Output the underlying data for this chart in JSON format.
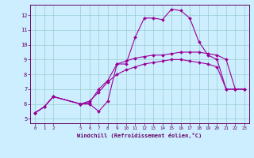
{
  "xlabel": "Windchill (Refroidissement éolien,°C)",
  "bg_color": "#cceeff",
  "line_color": "#990099",
  "grid_color": "#99cccc",
  "axis_color": "#660066",
  "tick_color": "#660066",
  "xlim_min": -0.5,
  "xlim_max": 23.5,
  "ylim_min": 4.7,
  "ylim_max": 12.7,
  "yticks": [
    5,
    6,
    7,
    8,
    9,
    10,
    11,
    12
  ],
  "xticks": [
    0,
    1,
    2,
    5,
    6,
    7,
    8,
    9,
    10,
    11,
    12,
    13,
    14,
    15,
    16,
    17,
    18,
    19,
    20,
    21,
    22,
    23
  ],
  "line1_x": [
    0,
    1,
    2,
    5,
    6,
    7,
    8,
    9,
    10,
    11,
    12,
    13,
    14,
    15,
    16,
    17,
    18,
    19,
    20,
    21,
    22,
    23
  ],
  "line1_y": [
    5.4,
    5.8,
    6.5,
    6.0,
    6.0,
    5.5,
    6.2,
    8.7,
    8.7,
    10.5,
    11.8,
    11.8,
    11.7,
    12.4,
    12.3,
    11.8,
    10.2,
    9.3,
    9.0,
    7.0,
    7.0,
    7.0
  ],
  "line2_x": [
    0,
    1,
    2,
    5,
    6,
    7,
    8,
    9,
    10,
    11,
    12,
    13,
    14,
    15,
    16,
    17,
    18,
    19,
    20,
    21,
    22,
    23
  ],
  "line2_y": [
    5.4,
    5.8,
    6.5,
    6.0,
    6.1,
    7.0,
    7.6,
    8.7,
    8.9,
    9.1,
    9.2,
    9.3,
    9.3,
    9.4,
    9.5,
    9.5,
    9.5,
    9.4,
    9.3,
    9.0,
    7.0,
    7.0
  ],
  "line3_x": [
    0,
    1,
    2,
    5,
    6,
    7,
    8,
    9,
    10,
    11,
    12,
    13,
    14,
    15,
    16,
    17,
    18,
    19,
    20,
    21,
    22,
    23
  ],
  "line3_y": [
    5.4,
    5.8,
    6.5,
    6.0,
    6.2,
    6.8,
    7.5,
    8.0,
    8.3,
    8.5,
    8.7,
    8.8,
    8.9,
    9.0,
    9.0,
    8.9,
    8.8,
    8.7,
    8.5,
    7.0,
    7.0,
    7.0
  ],
  "xlabel_fontsize": 5.0,
  "tick_fontsize_x": 4.2,
  "tick_fontsize_y": 5.0,
  "linewidth": 0.8,
  "markersize": 2.0
}
